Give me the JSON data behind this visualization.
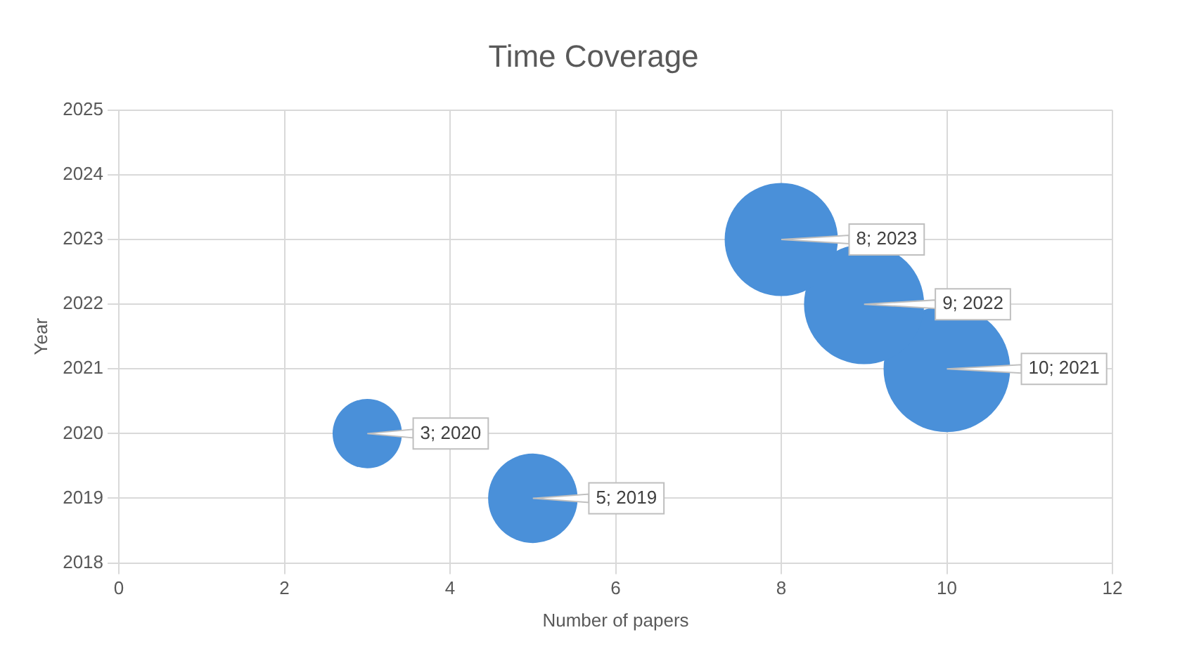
{
  "chart_data": {
    "type": "bubble",
    "title": "Time Coverage",
    "xlabel": "Number of papers",
    "ylabel": "Year",
    "x": [
      5,
      3,
      10,
      9,
      8
    ],
    "values": [
      2019,
      2020,
      2021,
      2022,
      2023
    ],
    "sizes": [
      0.5,
      0.3,
      1,
      0.9,
      0.8
    ],
    "value_labels": [
      "5; 2019",
      "3; 2020",
      "10; 2021",
      "9; 2022",
      "8; 2023"
    ],
    "color": "#4a90d9",
    "xlim": [
      0,
      12
    ],
    "xticks": [
      0,
      2,
      4,
      6,
      8,
      10,
      12
    ],
    "ylim": [
      2018,
      2025
    ],
    "yticks": [
      2018,
      2019,
      2020,
      2021,
      2022,
      2023,
      2024,
      2025
    ],
    "grid": true,
    "legend": false
  }
}
